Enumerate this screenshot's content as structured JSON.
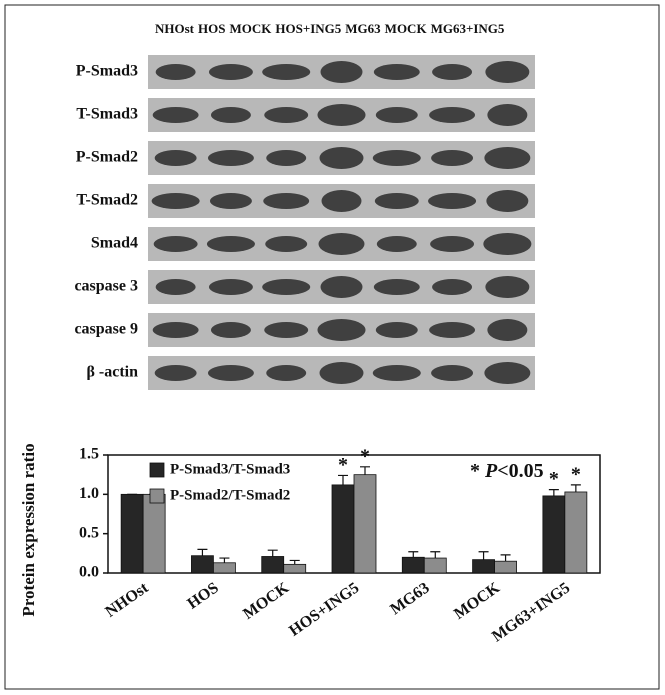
{
  "blot": {
    "lane_labels": [
      "NHOst",
      "HOS",
      "MOCK",
      "HOS+ING5",
      "MG63",
      "MOCK",
      "MG63+ING5"
    ],
    "rows": [
      "P-Smad3",
      "T-Smad3",
      "P-Smad2",
      "T-Smad2",
      "Smad4",
      "caspase 3",
      "caspase 9",
      "β -actin"
    ]
  },
  "chart_data": {
    "type": "bar",
    "y_label": "Protein expression ratio",
    "categories": [
      "NHOst",
      "HOS",
      "MOCK",
      "HOS+ING5",
      "MG63",
      "MOCK",
      "MG63+ING5"
    ],
    "series": [
      {
        "name": "P-Smad3/T-Smad3",
        "color": "#262626",
        "values": [
          1.0,
          0.22,
          0.21,
          1.12,
          0.2,
          0.17,
          0.98
        ],
        "errors": [
          0,
          0.08,
          0.08,
          0.12,
          0.07,
          0.1,
          0.08
        ],
        "marks": [
          null,
          null,
          null,
          "*",
          null,
          null,
          "*"
        ]
      },
      {
        "name": "P-Smad2/T-Smad2",
        "color": "#8c8c8c",
        "values": [
          1.0,
          0.13,
          0.11,
          1.25,
          0.19,
          0.15,
          1.03
        ],
        "errors": [
          0,
          0.06,
          0.05,
          0.1,
          0.08,
          0.08,
          0.09
        ],
        "marks": [
          null,
          null,
          null,
          "*",
          null,
          null,
          "*"
        ]
      }
    ],
    "annotation": {
      "star": "*",
      "p": "P",
      "rest": "<0.05"
    },
    "ylim": [
      0,
      1.5
    ],
    "yticks": [
      {
        "value": 0,
        "label": "0.0"
      },
      0.5,
      {
        "value": 1,
        "label": "1.0"
      },
      {
        "value": 1.5,
        "label": "1.5"
      }
    ],
    "legend": "upper-left"
  }
}
